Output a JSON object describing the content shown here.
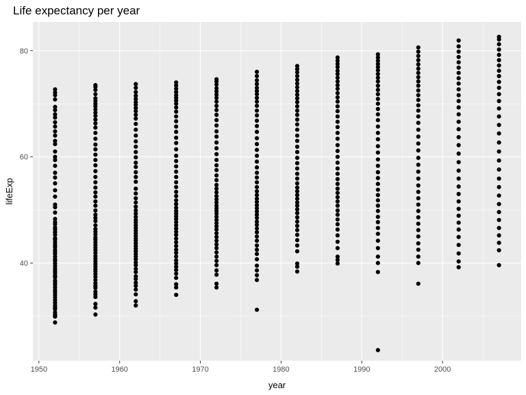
{
  "chart_data": {
    "type": "scatter",
    "title": "Life expectancy per year",
    "xlabel": "year",
    "ylabel": "lifeExp",
    "xlim": [
      1949.25,
      2009.75
    ],
    "ylim": [
      21.6,
      85.4
    ],
    "x_ticks": [
      1950,
      1960,
      1970,
      1980,
      1990,
      2000
    ],
    "y_ticks": [
      40,
      60,
      80
    ],
    "grid": true,
    "legend": "none",
    "point_color": "#000000",
    "panel_color": "#ebebeb",
    "series": [
      {
        "x": 1952,
        "y": [
          28.8,
          29.9,
          30.0,
          30.3,
          30.7,
          31.3,
          31.6,
          32.0,
          32.5,
          33.0,
          33.5,
          34.0,
          34.5,
          34.9,
          35.4,
          35.9,
          36.3,
          36.7,
          37.3,
          37.6,
          38.1,
          38.5,
          38.9,
          39.4,
          39.9,
          40.4,
          40.7,
          41.2,
          41.7,
          42.1,
          42.5,
          43.0,
          43.4,
          43.9,
          44.4,
          44.7,
          45.3,
          45.8,
          46.3,
          46.7,
          47.3,
          47.7,
          48.3,
          49.5,
          50.5,
          51.0,
          52.5,
          53.7,
          55.0,
          56.1,
          57.0,
          58.3,
          59.4,
          60.0,
          61.0,
          62.4,
          63.0,
          64.0,
          64.8,
          65.7,
          66.5,
          67.4,
          68.0,
          68.8,
          69.4,
          70.8,
          71.6,
          72.1,
          72.7
        ],
        "name": ""
      },
      {
        "x": 1957,
        "y": [
          30.3,
          31.6,
          32.3,
          33.6,
          34.1,
          34.6,
          35.3,
          35.7,
          36.2,
          36.8,
          37.4,
          37.9,
          38.4,
          38.8,
          39.3,
          39.8,
          40.3,
          40.8,
          41.3,
          41.9,
          42.4,
          42.9,
          43.4,
          43.9,
          44.4,
          44.8,
          45.4,
          45.9,
          46.4,
          47.1,
          47.9,
          48.5,
          49.1,
          49.9,
          50.8,
          51.6,
          52.5,
          53.3,
          54.2,
          55.2,
          56.2,
          57.3,
          58.4,
          59.4,
          60.4,
          61.4,
          62.3,
          63.4,
          64.5,
          65.5,
          66.3,
          67.0,
          67.7,
          68.3,
          68.9,
          69.5,
          70.0,
          70.5,
          71.0,
          71.8,
          72.6,
          73.2,
          73.5
        ],
        "name": ""
      },
      {
        "x": 1962,
        "y": [
          32.0,
          32.8,
          34.1,
          35.0,
          35.7,
          36.3,
          37.0,
          37.5,
          38.3,
          38.9,
          39.6,
          40.1,
          40.7,
          41.2,
          41.7,
          42.2,
          42.7,
          43.2,
          43.7,
          44.2,
          44.6,
          45.1,
          45.6,
          46.1,
          46.6,
          47.1,
          47.6,
          48.1,
          48.7,
          49.3,
          49.9,
          50.6,
          51.4,
          52.2,
          53.1,
          54.0,
          55.3,
          56.2,
          57.1,
          58.1,
          58.9,
          59.9,
          60.9,
          61.9,
          62.9,
          64.0,
          65.1,
          66.2,
          67.2,
          67.9,
          68.6,
          69.2,
          69.8,
          70.3,
          70.9,
          71.5,
          72.2,
          73.0,
          73.7
        ],
        "name": ""
      },
      {
        "x": 1967,
        "y": [
          34.0,
          35.4,
          36.0,
          37.2,
          38.0,
          38.7,
          39.3,
          39.9,
          40.5,
          41.2,
          41.9,
          42.5,
          43.2,
          43.9,
          44.6,
          45.3,
          45.9,
          46.5,
          47.1,
          47.7,
          48.3,
          48.8,
          49.3,
          49.8,
          50.4,
          51.1,
          51.8,
          52.6,
          53.4,
          54.3,
          55.2,
          56.2,
          57.2,
          58.2,
          59.2,
          60.2,
          61.4,
          62.6,
          63.6,
          64.7,
          65.7,
          66.7,
          67.6,
          68.5,
          69.3,
          70.0,
          70.6,
          71.1,
          71.6,
          72.2,
          72.8,
          73.4,
          74.0
        ],
        "name": ""
      },
      {
        "x": 1972,
        "y": [
          35.4,
          36.1,
          37.8,
          38.6,
          39.6,
          40.4,
          41.2,
          42.0,
          42.8,
          43.5,
          44.2,
          44.9,
          45.6,
          46.3,
          46.9,
          47.5,
          48.1,
          48.7,
          49.3,
          49.8,
          50.3,
          50.8,
          51.4,
          52.0,
          52.6,
          53.3,
          54.0,
          54.7,
          55.6,
          56.5,
          57.5,
          58.4,
          59.4,
          60.5,
          61.6,
          62.7,
          63.8,
          64.8,
          65.9,
          66.9,
          67.9,
          68.8,
          69.6,
          70.4,
          71.1,
          71.7,
          72.3,
          72.9,
          73.6,
          74.2,
          74.6
        ],
        "name": ""
      },
      {
        "x": 1977,
        "y": [
          31.2,
          36.8,
          37.7,
          38.6,
          39.5,
          40.7,
          41.7,
          42.5,
          43.3,
          44.2,
          45.0,
          45.8,
          46.5,
          47.2,
          47.8,
          48.5,
          49.1,
          49.7,
          50.3,
          50.9,
          51.5,
          52.1,
          52.8,
          53.5,
          54.3,
          55.2,
          56.1,
          57.0,
          58.0,
          59.1,
          60.2,
          61.3,
          62.4,
          63.5,
          64.7,
          65.8,
          66.8,
          67.8,
          68.7,
          69.6,
          70.4,
          71.1,
          71.8,
          72.4,
          73.0,
          73.7,
          74.4,
          75.2,
          76.0
        ],
        "name": ""
      },
      {
        "x": 1982,
        "y": [
          38.4,
          39.3,
          39.9,
          42.2,
          43.3,
          44.3,
          45.3,
          46.2,
          47.0,
          47.8,
          48.6,
          49.4,
          50.1,
          50.8,
          51.4,
          52.1,
          52.8,
          53.5,
          54.2,
          55.0,
          55.9,
          56.8,
          57.8,
          58.8,
          59.8,
          60.9,
          61.9,
          63.0,
          64.0,
          65.1,
          66.1,
          67.0,
          67.9,
          68.7,
          69.5,
          70.3,
          71.0,
          71.7,
          72.4,
          73.1,
          73.8,
          74.5,
          75.2,
          75.9,
          76.5,
          77.1
        ],
        "name": ""
      },
      {
        "x": 1987,
        "y": [
          39.9,
          40.6,
          41.2,
          42.8,
          44.0,
          45.2,
          46.3,
          47.3,
          48.2,
          49.1,
          49.9,
          50.8,
          51.6,
          52.4,
          53.2,
          54.0,
          54.9,
          55.8,
          56.8,
          57.8,
          58.9,
          60.0,
          61.1,
          62.2,
          63.4,
          64.5,
          65.6,
          66.6,
          67.6,
          68.6,
          69.5,
          70.4,
          71.2,
          72.0,
          72.8,
          73.5,
          74.2,
          74.9,
          75.6,
          76.2,
          76.9,
          77.5,
          78.1,
          78.7
        ],
        "name": ""
      },
      {
        "x": 1992,
        "y": [
          23.6,
          38.3,
          40.0,
          41.2,
          42.8,
          44.2,
          45.5,
          46.6,
          47.7,
          48.7,
          49.8,
          50.8,
          51.8,
          52.8,
          53.8,
          54.9,
          56.0,
          57.1,
          58.3,
          59.5,
          60.8,
          62.0,
          63.3,
          64.5,
          65.7,
          66.9,
          68.0,
          69.0,
          70.0,
          70.9,
          71.8,
          72.6,
          73.4,
          74.2,
          74.9,
          75.6,
          76.3,
          76.9,
          77.5,
          78.1,
          78.7,
          79.3
        ],
        "name": ""
      },
      {
        "x": 1997,
        "y": [
          36.1,
          40.0,
          41.2,
          42.5,
          43.7,
          45.0,
          46.2,
          47.4,
          48.6,
          49.8,
          51.0,
          52.2,
          53.4,
          54.6,
          55.9,
          57.2,
          58.5,
          59.8,
          61.2,
          62.5,
          63.8,
          65.1,
          66.4,
          67.6,
          68.7,
          69.7,
          70.7,
          71.6,
          72.5,
          73.4,
          74.2,
          75.0,
          75.8,
          76.6,
          77.4,
          78.2,
          79.0,
          79.8,
          80.6
        ],
        "name": ""
      },
      {
        "x": 2002,
        "y": [
          39.2,
          40.3,
          41.8,
          43.4,
          44.9,
          46.3,
          47.6,
          48.9,
          50.2,
          51.6,
          53.0,
          54.4,
          55.9,
          57.4,
          59.0,
          60.6,
          62.2,
          63.7,
          65.2,
          66.6,
          68.0,
          69.3,
          70.5,
          71.6,
          72.7,
          73.8,
          74.8,
          75.8,
          76.8,
          77.8,
          78.8,
          79.8,
          80.8,
          81.9
        ],
        "name": ""
      },
      {
        "x": 2007,
        "y": [
          39.6,
          42.4,
          43.8,
          45.2,
          46.6,
          48.1,
          49.6,
          51.1,
          52.7,
          54.3,
          55.9,
          57.6,
          59.3,
          61.0,
          62.7,
          64.4,
          66.0,
          67.6,
          69.1,
          70.5,
          71.8,
          73.0,
          74.1,
          75.2,
          76.2,
          77.2,
          78.2,
          79.2,
          80.2,
          81.2,
          82.1,
          82.6
        ],
        "name": ""
      }
    ]
  }
}
